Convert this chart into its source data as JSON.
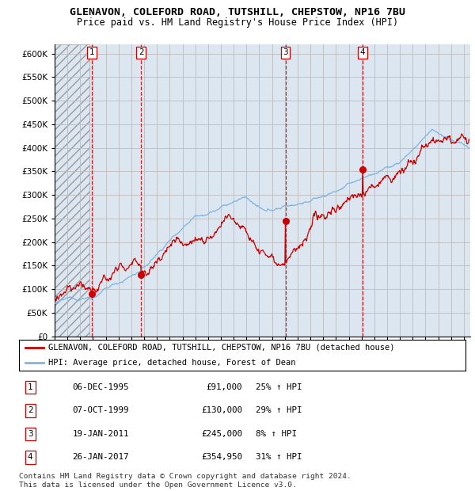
{
  "title": "GLENAVON, COLEFORD ROAD, TUTSHILL, CHEPSTOW, NP16 7BU",
  "subtitle": "Price paid vs. HM Land Registry's House Price Index (HPI)",
  "ylim": [
    0,
    620000
  ],
  "yticks": [
    0,
    50000,
    100000,
    150000,
    200000,
    250000,
    300000,
    350000,
    400000,
    450000,
    500000,
    550000,
    600000
  ],
  "ytick_labels": [
    "£0",
    "£50K",
    "£100K",
    "£150K",
    "£200K",
    "£250K",
    "£300K",
    "£350K",
    "£400K",
    "£450K",
    "£500K",
    "£550K",
    "£600K"
  ],
  "xlim_start": 1993.0,
  "xlim_end": 2025.5,
  "hatch_end": 1995.75,
  "plot_bg": "#dce6f1",
  "grid_color": "#bbbbbb",
  "red_line_color": "#cc0000",
  "blue_line_color": "#7eb6e0",
  "sale_marker_color": "#cc0000",
  "sale_line_color": "#cc0000",
  "sales": [
    {
      "num": 1,
      "year": 1995.92,
      "price": 91000,
      "label": "1",
      "date": "06-DEC-1995",
      "price_str": "£91,000",
      "pct": "25% ↑ HPI"
    },
    {
      "num": 2,
      "year": 1999.77,
      "price": 130000,
      "label": "2",
      "date": "07-OCT-1999",
      "price_str": "£130,000",
      "pct": "29% ↑ HPI"
    },
    {
      "num": 3,
      "year": 2011.05,
      "price": 245000,
      "label": "3",
      "date": "19-JAN-2011",
      "price_str": "£245,000",
      "pct": "8% ↑ HPI"
    },
    {
      "num": 4,
      "year": 2017.07,
      "price": 354950,
      "label": "4",
      "date": "26-JAN-2017",
      "price_str": "£354,950",
      "pct": "31% ↑ HPI"
    }
  ],
  "legend_entries": [
    "GLENAVON, COLEFORD ROAD, TUTSHILL, CHEPSTOW, NP16 7BU (detached house)",
    "HPI: Average price, detached house, Forest of Dean"
  ],
  "footer": "Contains HM Land Registry data © Crown copyright and database right 2024.\nThis data is licensed under the Open Government Licence v3.0.",
  "title_fontsize": 9.5,
  "subtitle_fontsize": 8.5,
  "tick_fontsize": 7.5,
  "footer_fontsize": 6.8,
  "legend_fontsize": 7.5,
  "table_fontsize": 7.8
}
